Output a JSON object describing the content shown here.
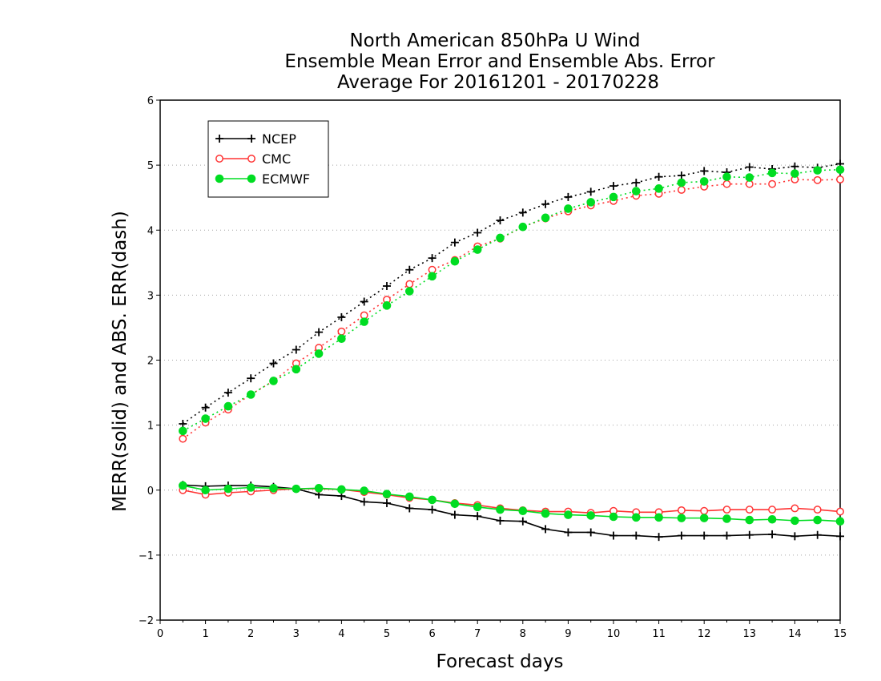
{
  "chart_data": {
    "type": "line",
    "title": [
      "North American 850hPa U Wind",
      "Ensemble Mean Error and Ensemble Abs. Error",
      "Average For 20161201 - 20170228"
    ],
    "xlabel": "Forecast days",
    "ylabel": "MERR(solid) and ABS. ERR(dash)",
    "xlim": [
      0,
      15
    ],
    "ylim": [
      -2,
      6
    ],
    "x_ticks": [
      "0",
      "1",
      "2",
      "3",
      "4",
      "5",
      "6",
      "7",
      "8",
      "9",
      "10",
      "11",
      "12",
      "13",
      "14",
      "15"
    ],
    "y_ticks": [
      "-2",
      "-1",
      "0",
      "1",
      "2",
      "3",
      "4",
      "5",
      "6"
    ],
    "grid": "horizontal dotted",
    "legend_position": "top-left",
    "x": [
      0.5,
      1.0,
      1.5,
      2.0,
      2.5,
      3.0,
      3.5,
      4.0,
      4.5,
      5.0,
      5.5,
      6.0,
      6.5,
      7.0,
      7.5,
      8.0,
      8.5,
      9.0,
      9.5,
      10.0,
      10.5,
      11.0,
      11.5,
      12.0,
      12.5,
      13.0,
      13.5,
      14.0,
      14.5,
      15.0
    ],
    "series": [
      {
        "name": "NCEP",
        "color": "#000000",
        "marker": "plus",
        "merr": [
          0.08,
          0.06,
          0.07,
          0.07,
          0.05,
          0.02,
          -0.07,
          -0.09,
          -0.18,
          -0.2,
          -0.28,
          -0.3,
          -0.38,
          -0.4,
          -0.47,
          -0.48,
          -0.6,
          -0.65,
          -0.65,
          -0.7,
          -0.7,
          -0.72,
          -0.7,
          -0.7,
          -0.7,
          -0.69,
          -0.68,
          -0.71,
          -0.69,
          -0.71
        ],
        "abs_err": [
          1.02,
          1.27,
          1.5,
          1.72,
          1.95,
          2.16,
          2.43,
          2.66,
          2.9,
          3.14,
          3.39,
          3.57,
          3.81,
          3.96,
          4.15,
          4.27,
          4.4,
          4.51,
          4.59,
          4.68,
          4.73,
          4.82,
          4.84,
          4.91,
          4.89,
          4.97,
          4.94,
          4.98,
          4.96,
          5.02
        ]
      },
      {
        "name": "CMC",
        "color": "#ff3333",
        "marker": "open-circle",
        "merr": [
          0.0,
          -0.07,
          -0.04,
          -0.02,
          0.0,
          0.02,
          0.02,
          0.01,
          -0.03,
          -0.07,
          -0.12,
          -0.15,
          -0.2,
          -0.23,
          -0.28,
          -0.31,
          -0.33,
          -0.33,
          -0.35,
          -0.32,
          -0.34,
          -0.34,
          -0.31,
          -0.32,
          -0.3,
          -0.3,
          -0.3,
          -0.28,
          -0.3,
          -0.33
        ],
        "abs_err": [
          0.79,
          1.04,
          1.24,
          1.47,
          1.68,
          1.95,
          2.19,
          2.44,
          2.69,
          2.93,
          3.17,
          3.39,
          3.54,
          3.75,
          3.87,
          4.05,
          4.18,
          4.29,
          4.38,
          4.45,
          4.53,
          4.56,
          4.62,
          4.67,
          4.71,
          4.71,
          4.71,
          4.78,
          4.77,
          4.78
        ]
      },
      {
        "name": "ECMWF",
        "color": "#00dd22",
        "marker": "filled-circle",
        "merr": [
          0.07,
          0.0,
          0.02,
          0.04,
          0.03,
          0.02,
          0.03,
          0.01,
          -0.01,
          -0.06,
          -0.1,
          -0.15,
          -0.21,
          -0.26,
          -0.3,
          -0.32,
          -0.36,
          -0.38,
          -0.39,
          -0.41,
          -0.42,
          -0.42,
          -0.43,
          -0.43,
          -0.44,
          -0.46,
          -0.45,
          -0.47,
          -0.46,
          -0.48
        ],
        "abs_err": [
          0.91,
          1.1,
          1.29,
          1.47,
          1.68,
          1.86,
          2.1,
          2.33,
          2.59,
          2.84,
          3.06,
          3.29,
          3.52,
          3.7,
          3.88,
          4.05,
          4.19,
          4.33,
          4.43,
          4.51,
          4.6,
          4.64,
          4.73,
          4.75,
          4.82,
          4.81,
          4.88,
          4.87,
          4.92,
          4.93
        ]
      }
    ]
  }
}
